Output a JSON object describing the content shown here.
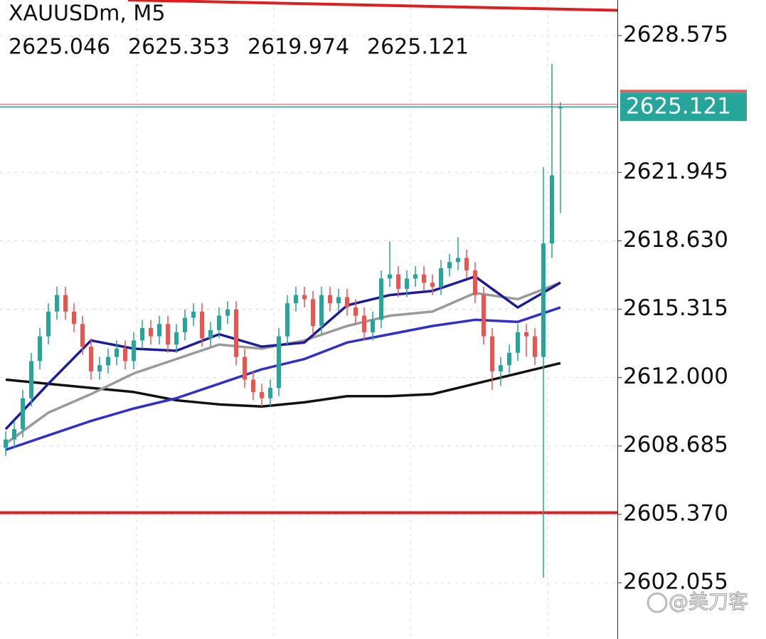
{
  "chart_data": {
    "type": "candlestick",
    "title": "XAUUSDm, M5",
    "ohlc": [
      2625.046,
      2625.353,
      2619.974,
      2625.121
    ],
    "current_price": 2625.121,
    "ask_price": 2625.25,
    "watermark": "@美刀客",
    "ylim": [
      2599.33,
      2630.3
    ],
    "yticks": [
      2628.575,
      2621.945,
      {
        "value": 2618.63,
        "label": "2618.630"
      },
      2615.315,
      {
        "value": 2612,
        "label": "2612.000"
      },
      2608.685,
      {
        "value": 2605.37,
        "label": "2605.370"
      },
      2602.055
    ],
    "grid": true,
    "up_color": "#26a69a",
    "down_color": "#ef5350",
    "candles": {
      "open": [
        2608.6,
        2609.0,
        2609.5,
        2611.0,
        2612.8,
        2614.0,
        2615.2,
        2616.0,
        2615.2,
        2614.6,
        2613.5,
        2612.3,
        2612.6,
        2613.0,
        2613.4,
        2612.8,
        2613.8,
        2614.4,
        2614.0,
        2614.6,
        2613.6,
        2614.2,
        2614.9,
        2615.2,
        2613.9,
        2614.3,
        2615.0,
        2615.3,
        2613.0,
        2611.9,
        2611.3,
        2611.0,
        2611.5,
        2614.0,
        2615.6,
        2616.0,
        2615.8,
        2614.5,
        2616.0,
        2615.6,
        2615.9,
        2615.4,
        2615.0,
        2614.2,
        2614.8,
        2616.8,
        2617.0,
        2616.3,
        2616.8,
        2617.0,
        2616.6,
        2616.4,
        2617.3,
        2617.6,
        2617.8,
        2617.2,
        2616.0,
        2614.0,
        2612.3,
        2612.6,
        2613.2,
        2614.2,
        2614.0,
        2613.0,
        2618.5,
        2625.046
      ],
      "high": [
        2609.4,
        2609.9,
        2611.4,
        2613.2,
        2614.4,
        2615.6,
        2616.4,
        2616.4,
        2615.6,
        2615.0,
        2613.9,
        2613.0,
        2613.4,
        2613.8,
        2613.8,
        2614.2,
        2614.8,
        2614.8,
        2615.0,
        2615.0,
        2614.6,
        2615.3,
        2615.6,
        2615.6,
        2614.7,
        2615.4,
        2615.7,
        2615.7,
        2613.4,
        2612.3,
        2611.7,
        2611.9,
        2614.4,
        2616.0,
        2616.4,
        2616.4,
        2616.2,
        2616.4,
        2616.4,
        2616.3,
        2616.3,
        2615.8,
        2615.4,
        2615.2,
        2617.2,
        2618.6,
        2617.4,
        2617.2,
        2617.4,
        2617.4,
        2617.0,
        2617.7,
        2618.0,
        2618.8,
        2618.2,
        2617.6,
        2616.4,
        2614.4,
        2613.0,
        2613.6,
        2614.6,
        2614.6,
        2614.4,
        2622.2,
        2627.2,
        2625.353
      ],
      "low": [
        2608.2,
        2608.6,
        2609.1,
        2610.6,
        2612.4,
        2613.6,
        2614.8,
        2614.8,
        2614.2,
        2613.1,
        2611.9,
        2611.9,
        2612.2,
        2612.6,
        2612.4,
        2612.4,
        2613.4,
        2613.6,
        2613.6,
        2613.2,
        2613.2,
        2613.8,
        2614.5,
        2613.5,
        2613.5,
        2613.9,
        2614.6,
        2612.6,
        2611.5,
        2610.9,
        2610.6,
        2610.6,
        2611.1,
        2613.6,
        2615.2,
        2615.4,
        2614.1,
        2614.1,
        2615.2,
        2615.2,
        2615.0,
        2614.6,
        2613.8,
        2613.8,
        2614.4,
        2616.4,
        2615.9,
        2615.9,
        2616.4,
        2616.2,
        2616.0,
        2616.0,
        2616.9,
        2617.2,
        2616.8,
        2615.6,
        2613.6,
        2611.4,
        2611.6,
        2612.2,
        2612.8,
        2613.0,
        2612.6,
        2602.3,
        2617.8,
        2619.974
      ],
      "close": [
        2609.0,
        2609.5,
        2611.0,
        2612.8,
        2614.0,
        2615.2,
        2616.0,
        2615.2,
        2614.6,
        2613.5,
        2612.3,
        2612.6,
        2613.0,
        2613.4,
        2612.8,
        2613.8,
        2614.4,
        2614.0,
        2614.6,
        2613.6,
        2614.2,
        2614.9,
        2615.2,
        2613.9,
        2614.3,
        2615.0,
        2615.3,
        2613.0,
        2611.9,
        2611.3,
        2611.0,
        2611.5,
        2614.0,
        2615.6,
        2616.0,
        2615.8,
        2614.5,
        2616.0,
        2615.6,
        2615.9,
        2615.4,
        2615.0,
        2614.2,
        2614.8,
        2616.8,
        2617.0,
        2616.3,
        2616.8,
        2617.0,
        2616.6,
        2616.4,
        2617.3,
        2617.6,
        2617.8,
        2617.2,
        2616.0,
        2614.0,
        2612.3,
        2612.6,
        2613.2,
        2614.2,
        2614.0,
        2613.0,
        2618.5,
        2621.8,
        2625.121
      ]
    },
    "series": [
      {
        "color": "#111111",
        "x": [
          0,
          5,
          10,
          15,
          20,
          25,
          30,
          35,
          40,
          45,
          50,
          55,
          60,
          65
        ],
        "values": [
          2611.9,
          2611.7,
          2611.5,
          2611.3,
          2610.9,
          2610.7,
          2610.6,
          2610.8,
          2611.1,
          2611.1,
          2611.2,
          2611.7,
          2612.2,
          2612.7
        ]
      },
      {
        "color": "#3030c8",
        "x": [
          0,
          5,
          10,
          15,
          20,
          25,
          30,
          35,
          40,
          45,
          50,
          55,
          60,
          65
        ],
        "values": [
          2608.5,
          2609.2,
          2609.9,
          2610.5,
          2611.0,
          2611.7,
          2612.4,
          2612.9,
          2613.7,
          2614.1,
          2614.5,
          2614.8,
          2614.7,
          2615.4
        ]
      },
      {
        "color": "#9a9a9a",
        "x": [
          0,
          5,
          10,
          15,
          20,
          25,
          30,
          35,
          40,
          45,
          50,
          55,
          60,
          65
        ],
        "values": [
          2608.8,
          2610.3,
          2611.2,
          2612.2,
          2612.9,
          2613.6,
          2613.4,
          2613.8,
          2614.5,
          2615.0,
          2615.2,
          2616.1,
          2615.8,
          2616.6
        ]
      },
      {
        "color": "#1c1c9a",
        "x": [
          0,
          5,
          10,
          15,
          20,
          25,
          30,
          35,
          40,
          45,
          50,
          55,
          60,
          65
        ],
        "values": [
          2609.5,
          2611.7,
          2613.8,
          2613.4,
          2613.3,
          2614.1,
          2613.5,
          2613.7,
          2615.5,
          2616.0,
          2616.2,
          2616.9,
          2615.4,
          2616.6
        ]
      }
    ],
    "lines": [
      {
        "color": "#dd1f1f",
        "values": [
          2630.3,
          2629.8
        ]
      },
      {
        "color": "#dd1f1f",
        "values": [
          2605.45,
          2605.45
        ]
      }
    ]
  }
}
